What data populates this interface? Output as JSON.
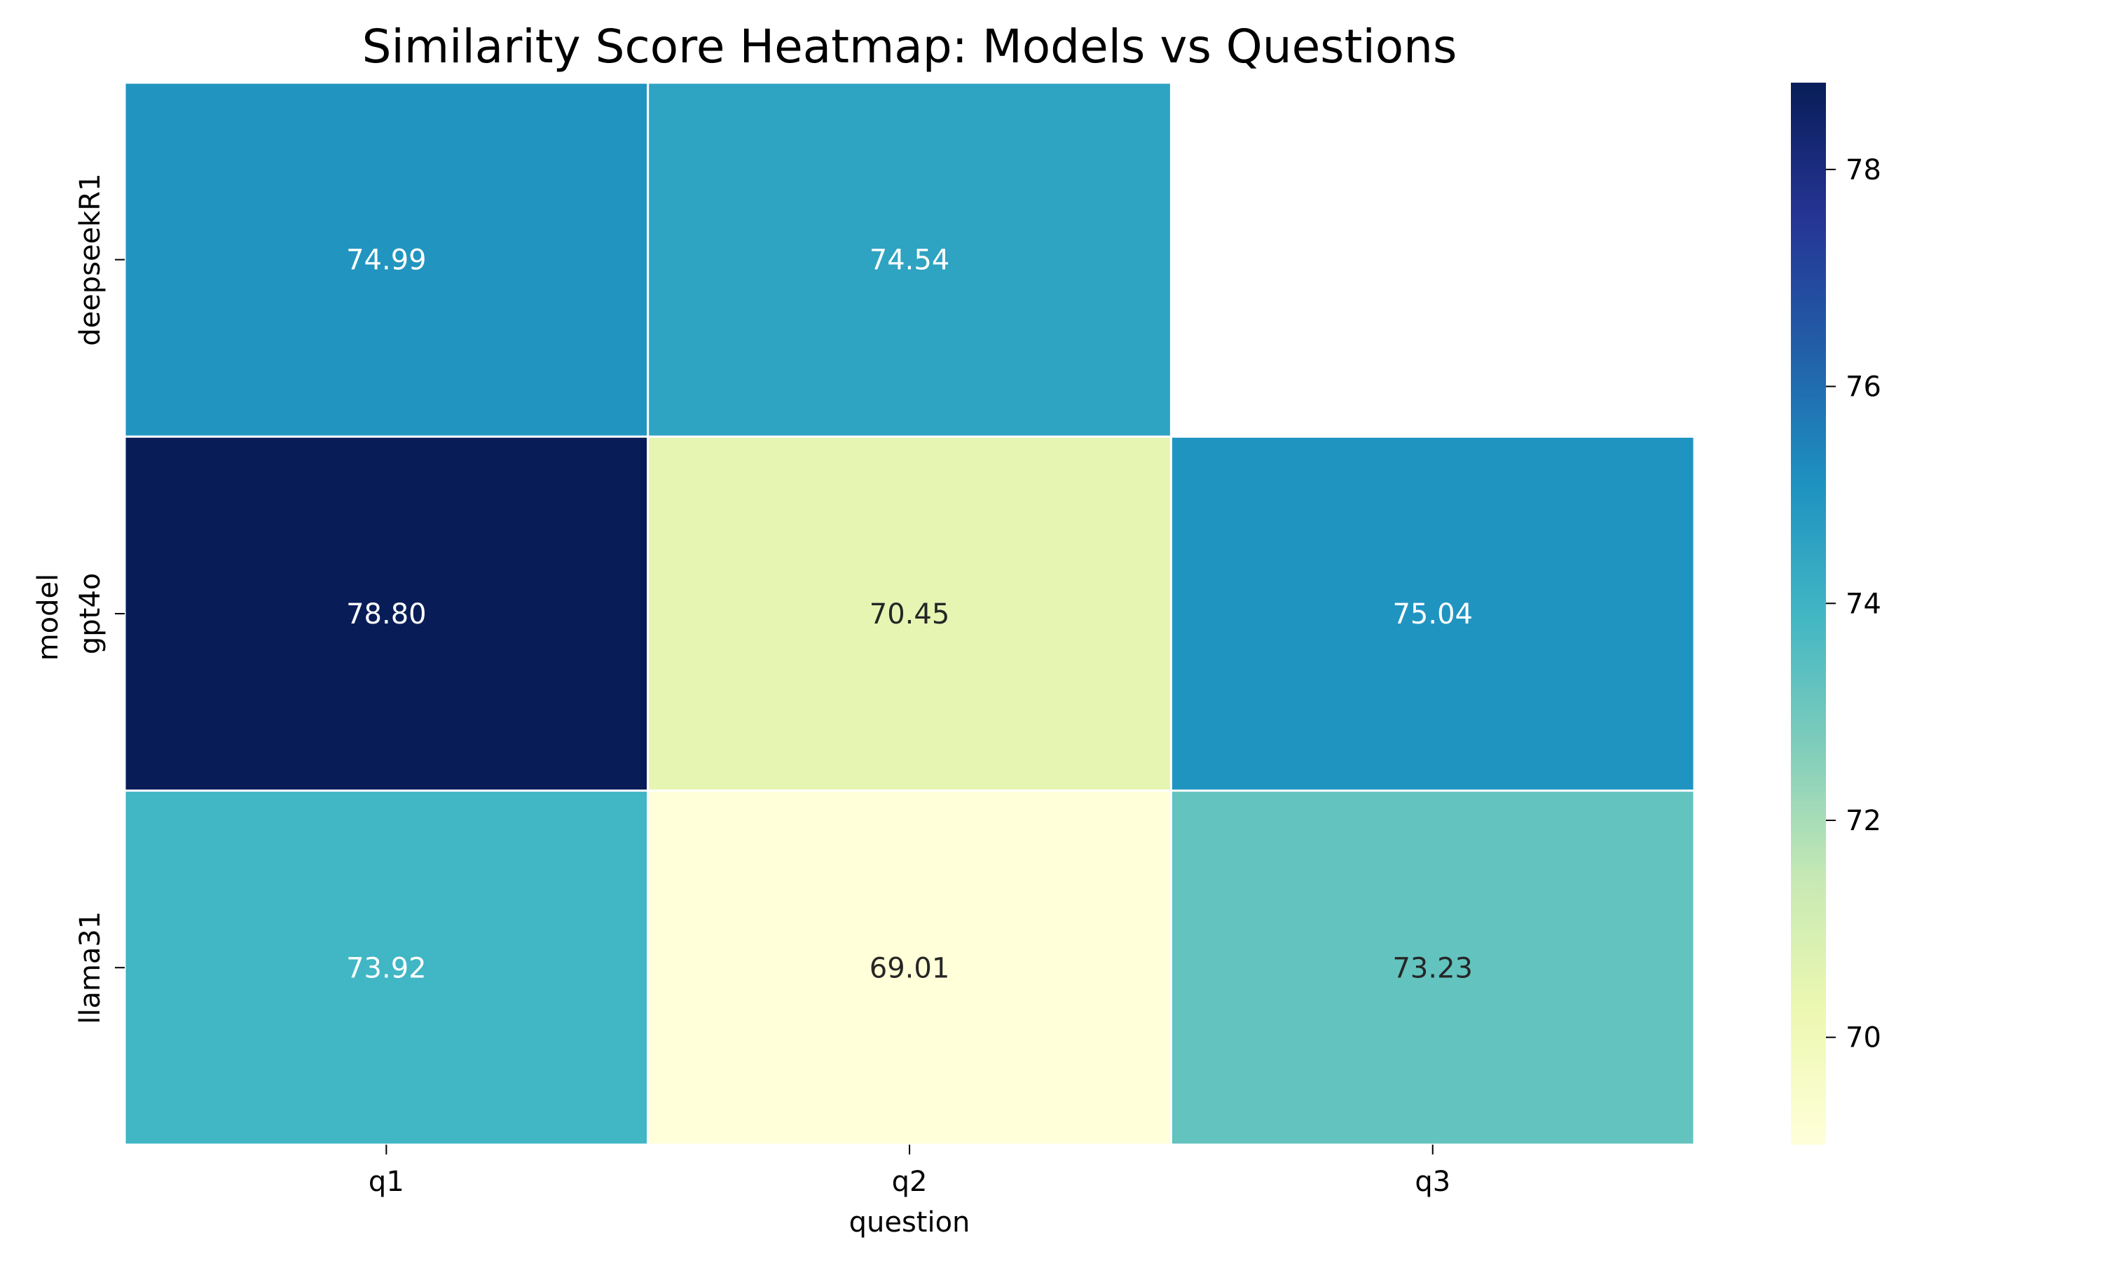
{
  "chart_data": {
    "type": "heatmap",
    "title": "Similarity Score Heatmap: Models vs Questions",
    "xlabel": "question",
    "ylabel": "model",
    "x_categories": [
      "q1",
      "q2",
      "q3"
    ],
    "y_categories": [
      "deepseekR1",
      "gpt4o",
      "llama31"
    ],
    "values": [
      [
        74.99,
        74.54,
        null
      ],
      [
        78.8,
        70.45,
        75.04
      ],
      [
        73.92,
        69.01,
        73.23
      ]
    ],
    "value_labels": [
      [
        "74.99",
        "74.54",
        ""
      ],
      [
        "78.80",
        "70.45",
        "75.04"
      ],
      [
        "73.92",
        "69.01",
        "73.23"
      ]
    ],
    "colormap": "YlGnBu",
    "colorbar": {
      "range": [
        69.01,
        78.8
      ],
      "ticks": [
        70,
        72,
        74,
        76,
        78
      ]
    },
    "colors": {
      "cell_border": "#ffffff",
      "label_light": "#ffffff",
      "label_dark": "#262626"
    }
  }
}
